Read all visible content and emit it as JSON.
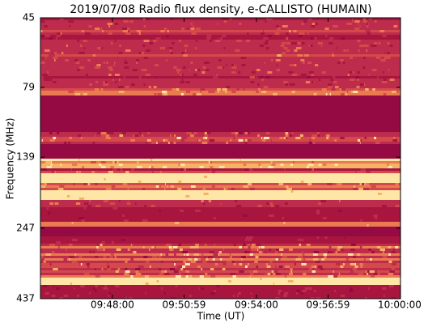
{
  "chart_data": {
    "type": "spectrogram",
    "title": "2019/07/08  Radio flux density, e-CALLISTO (HUMAIN)",
    "xlabel": "Time (UT)",
    "ylabel": "Frequency (MHz)",
    "xlim": [
      35100,
      36000
    ],
    "xticks": [
      {
        "value": 35280,
        "label": "09:48:00"
      },
      {
        "value": 35459,
        "label": "09:50:59"
      },
      {
        "value": 35640,
        "label": "09:54:00"
      },
      {
        "value": 35819,
        "label": "09:56:59"
      },
      {
        "value": 36000,
        "label": "10:00:00"
      }
    ],
    "ylim": [
      45,
      437
    ],
    "yscale": "log",
    "y_inverted": true,
    "yticks": [
      45,
      79,
      139,
      247,
      437
    ]
  }
}
